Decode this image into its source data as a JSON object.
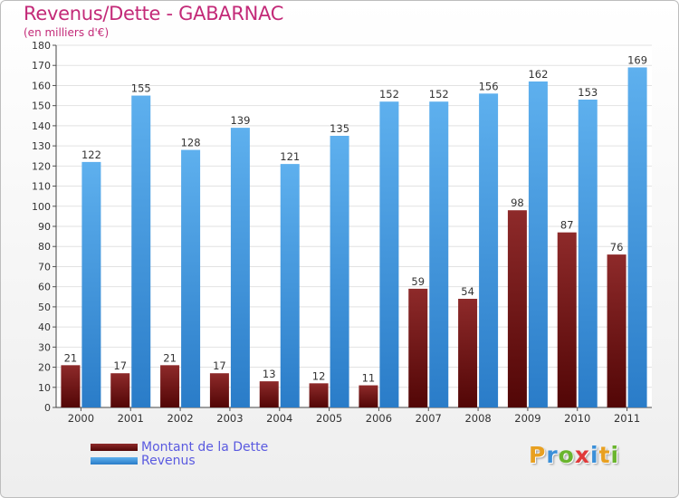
{
  "chart_data": {
    "type": "bar",
    "title": "Revenus/Dette - GABARNAC",
    "subtitle": "(en milliers d'€)",
    "categories": [
      "2000",
      "2001",
      "2002",
      "2003",
      "2004",
      "2005",
      "2006",
      "2007",
      "2008",
      "2009",
      "2010",
      "2011"
    ],
    "series": [
      {
        "name": "Montant de la Dette",
        "values": [
          21,
          17,
          21,
          17,
          13,
          12,
          11,
          59,
          54,
          98,
          87,
          76
        ],
        "color": "#7a1c1c"
      },
      {
        "name": "Revenus",
        "values": [
          122,
          155,
          128,
          139,
          121,
          135,
          152,
          152,
          156,
          162,
          153,
          169
        ],
        "color": "#4fa3e8"
      }
    ],
    "ylim": [
      0,
      180
    ],
    "ytick_step": 10,
    "grid": true,
    "legend_position": "bottom-left"
  },
  "branding": {
    "logo_letters": [
      "P",
      "r",
      "o",
      "x",
      "i",
      "t",
      "i"
    ],
    "logo_colors": [
      "#e8a020",
      "#3a8fd8",
      "#6ab52e",
      "#e03a3a",
      "#3a8fd8",
      "#e8a020",
      "#6ab52e"
    ]
  }
}
